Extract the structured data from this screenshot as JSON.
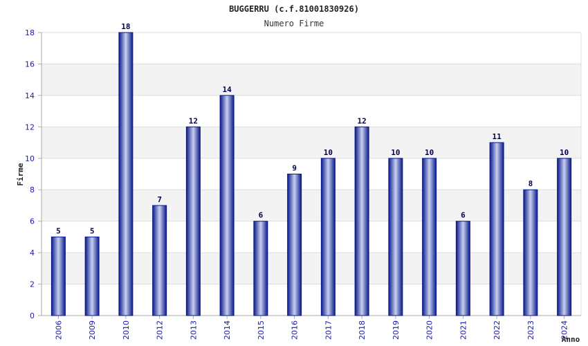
{
  "chart_data": {
    "type": "bar",
    "title": "BUGGERRU (c.f.81001830926)",
    "subtitle": "Numero Firme",
    "xlabel": "Anno",
    "ylabel": "Firme",
    "categories": [
      "2006",
      "2009",
      "2010",
      "2012",
      "2013",
      "2014",
      "2015",
      "2016",
      "2017",
      "2018",
      "2019",
      "2020",
      "2021",
      "2022",
      "2023",
      "2024"
    ],
    "values": [
      5,
      5,
      18,
      7,
      12,
      14,
      6,
      9,
      10,
      12,
      10,
      10,
      6,
      11,
      8,
      10
    ],
    "ylim": [
      0,
      18
    ],
    "yticks": [
      0,
      2,
      4,
      6,
      8,
      10,
      12,
      14,
      16,
      18
    ],
    "grid": true,
    "legend": "none",
    "colors": {
      "bar_dark": "#0a1a8a",
      "bar_light": "#c8d0f0",
      "grid_band": "#f3f3f3",
      "grid_line": "#dddddd",
      "axis": "#aaaaaa",
      "tick_text": "#1a1aa6",
      "value_text": "#000050"
    }
  }
}
